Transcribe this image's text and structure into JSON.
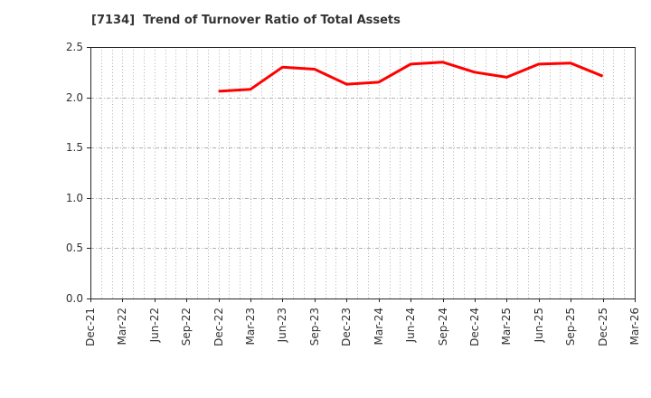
{
  "page": {
    "background": "#ffffff"
  },
  "chart_data": {
    "type": "line",
    "title": "[7134]  Trend of Turnover Ratio of Total Assets",
    "title_color": "#333333",
    "categories": [
      "Dec-21",
      "Mar-22",
      "Jun-22",
      "Sep-22",
      "Dec-22",
      "Mar-23",
      "Jun-23",
      "Sep-23",
      "Dec-23",
      "Mar-24",
      "Jun-24",
      "Sep-24",
      "Dec-24",
      "Mar-25",
      "Jun-25",
      "Sep-25",
      "Dec-25",
      "Mar-26"
    ],
    "series": [
      {
        "name": "Turnover Ratio of Total Assets",
        "color": "#ff0000",
        "values": [
          null,
          null,
          null,
          null,
          2.06,
          2.08,
          2.3,
          2.28,
          2.13,
          2.15,
          2.33,
          2.35,
          2.25,
          2.2,
          2.33,
          2.34,
          2.21,
          null
        ]
      }
    ],
    "xlabel": "",
    "ylabel": "",
    "ylim": [
      0.0,
      2.5
    ],
    "yticks": [
      "0.0",
      "0.5",
      "1.0",
      "1.5",
      "2.0",
      "2.5"
    ],
    "legend": "none",
    "grid": {
      "vertical": "dotted, monthly minor intervals",
      "horizontal": "dashed, every 0.5",
      "color": "#b0b0b0"
    },
    "border_color": "#262626",
    "tick_label_color": "#333333"
  }
}
